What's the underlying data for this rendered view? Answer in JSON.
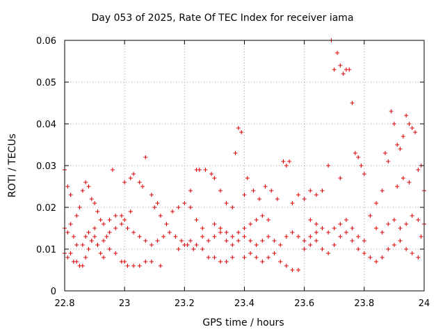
{
  "chart_data": {
    "type": "scatter",
    "title": "Day 053 of 2025, Rate Of TEC Index for receiver iama",
    "xlabel": "GPS time / hours",
    "ylabel": "ROTI / TECUs",
    "xlim": [
      22.8,
      24
    ],
    "ylim": [
      0,
      0.06
    ],
    "x_ticks": [
      "22.8",
      "23",
      "23.2",
      "23.4",
      "23.6",
      "23.8",
      "24"
    ],
    "y_ticks": [
      "0",
      "0.01",
      "0.02",
      "0.03",
      "0.04",
      "0.05",
      "0.06"
    ],
    "grid": true,
    "marker": "+",
    "color": "#e00000",
    "series": [
      {
        "points": [
          [
            22.8,
            0.029
          ],
          [
            22.81,
            0.025
          ],
          [
            22.82,
            0.023
          ],
          [
            22.8,
            0.015
          ],
          [
            22.81,
            0.014
          ],
          [
            22.82,
            0.016
          ],
          [
            22.83,
            0.013
          ],
          [
            22.84,
            0.018
          ],
          [
            22.85,
            0.02
          ],
          [
            22.86,
            0.024
          ],
          [
            22.87,
            0.026
          ],
          [
            22.88,
            0.025
          ],
          [
            22.89,
            0.022
          ],
          [
            22.9,
            0.021
          ],
          [
            22.91,
            0.019
          ],
          [
            22.92,
            0.017
          ],
          [
            22.8,
            0.009
          ],
          [
            22.81,
            0.008
          ],
          [
            22.82,
            0.009
          ],
          [
            22.83,
            0.007
          ],
          [
            22.84,
            0.007
          ],
          [
            22.85,
            0.006
          ],
          [
            22.86,
            0.006
          ],
          [
            22.87,
            0.008
          ],
          [
            22.88,
            0.01
          ],
          [
            22.89,
            0.012
          ],
          [
            22.9,
            0.013
          ],
          [
            22.91,
            0.011
          ],
          [
            22.92,
            0.009
          ],
          [
            22.93,
            0.008
          ],
          [
            22.84,
            0.011
          ],
          [
            22.86,
            0.011
          ],
          [
            22.88,
            0.014
          ],
          [
            22.9,
            0.015
          ],
          [
            22.93,
            0.016
          ],
          [
            22.95,
            0.017
          ],
          [
            22.97,
            0.018
          ],
          [
            22.99,
            0.018
          ],
          [
            23.0,
            0.017
          ],
          [
            23.02,
            0.019
          ],
          [
            22.96,
            0.029
          ],
          [
            23.0,
            0.026
          ],
          [
            23.02,
            0.027
          ],
          [
            23.03,
            0.028
          ],
          [
            23.05,
            0.026
          ],
          [
            23.06,
            0.025
          ],
          [
            23.07,
            0.032
          ],
          [
            23.09,
            0.023
          ],
          [
            23.1,
            0.02
          ],
          [
            23.11,
            0.021
          ],
          [
            22.95,
            0.01
          ],
          [
            22.97,
            0.009
          ],
          [
            22.99,
            0.007
          ],
          [
            23.0,
            0.007
          ],
          [
            23.01,
            0.006
          ],
          [
            23.03,
            0.006
          ],
          [
            23.05,
            0.006
          ],
          [
            23.07,
            0.007
          ],
          [
            23.09,
            0.007
          ],
          [
            23.12,
            0.006
          ],
          [
            23.12,
            0.018
          ],
          [
            23.14,
            0.016
          ],
          [
            23.16,
            0.019
          ],
          [
            23.18,
            0.02
          ],
          [
            23.2,
            0.021
          ],
          [
            23.22,
            0.02
          ],
          [
            23.24,
            0.017
          ],
          [
            23.26,
            0.015
          ],
          [
            23.22,
            0.024
          ],
          [
            23.24,
            0.029
          ],
          [
            23.25,
            0.029
          ],
          [
            23.27,
            0.029
          ],
          [
            23.29,
            0.028
          ],
          [
            23.3,
            0.027
          ],
          [
            23.32,
            0.024
          ],
          [
            23.34,
            0.021
          ],
          [
            23.36,
            0.02
          ],
          [
            23.37,
            0.033
          ],
          [
            23.38,
            0.039
          ],
          [
            23.39,
            0.038
          ],
          [
            23.18,
            0.01
          ],
          [
            23.2,
            0.011
          ],
          [
            23.22,
            0.012
          ],
          [
            23.24,
            0.011
          ],
          [
            23.26,
            0.01
          ],
          [
            23.28,
            0.008
          ],
          [
            23.3,
            0.008
          ],
          [
            23.32,
            0.007
          ],
          [
            23.34,
            0.007
          ],
          [
            23.36,
            0.008
          ],
          [
            23.3,
            0.016
          ],
          [
            23.32,
            0.015
          ],
          [
            23.34,
            0.014
          ],
          [
            23.36,
            0.013
          ],
          [
            23.38,
            0.014
          ],
          [
            23.4,
            0.015
          ],
          [
            23.42,
            0.016
          ],
          [
            23.44,
            0.017
          ],
          [
            23.46,
            0.018
          ],
          [
            23.48,
            0.017
          ],
          [
            23.4,
            0.023
          ],
          [
            23.41,
            0.027
          ],
          [
            23.43,
            0.024
          ],
          [
            23.45,
            0.022
          ],
          [
            23.47,
            0.025
          ],
          [
            23.49,
            0.024
          ],
          [
            23.51,
            0.022
          ],
          [
            23.53,
            0.031
          ],
          [
            23.54,
            0.03
          ],
          [
            23.55,
            0.031
          ],
          [
            23.4,
            0.008
          ],
          [
            23.42,
            0.009
          ],
          [
            23.44,
            0.008
          ],
          [
            23.46,
            0.007
          ],
          [
            23.48,
            0.008
          ],
          [
            23.5,
            0.009
          ],
          [
            23.52,
            0.007
          ],
          [
            23.54,
            0.006
          ],
          [
            23.56,
            0.005
          ],
          [
            23.58,
            0.005
          ],
          [
            23.56,
            0.021
          ],
          [
            23.58,
            0.023
          ],
          [
            23.6,
            0.022
          ],
          [
            23.62,
            0.024
          ],
          [
            23.64,
            0.023
          ],
          [
            23.66,
            0.024
          ],
          [
            23.68,
            0.03
          ],
          [
            23.69,
            0.06
          ],
          [
            23.7,
            0.053
          ],
          [
            23.71,
            0.057
          ],
          [
            23.72,
            0.054
          ],
          [
            23.73,
            0.052
          ],
          [
            23.74,
            0.053
          ],
          [
            23.75,
            0.053
          ],
          [
            23.76,
            0.045
          ],
          [
            23.77,
            0.033
          ],
          [
            23.78,
            0.032
          ],
          [
            23.79,
            0.03
          ],
          [
            23.8,
            0.028
          ],
          [
            23.72,
            0.027
          ],
          [
            23.6,
            0.01
          ],
          [
            23.62,
            0.011
          ],
          [
            23.64,
            0.012
          ],
          [
            23.66,
            0.01
          ],
          [
            23.68,
            0.009
          ],
          [
            23.7,
            0.011
          ],
          [
            23.72,
            0.013
          ],
          [
            23.74,
            0.014
          ],
          [
            23.76,
            0.012
          ],
          [
            23.78,
            0.01
          ],
          [
            23.8,
            0.009
          ],
          [
            23.82,
            0.008
          ],
          [
            23.84,
            0.007
          ],
          [
            23.86,
            0.008
          ],
          [
            23.88,
            0.01
          ],
          [
            23.9,
            0.011
          ],
          [
            23.92,
            0.012
          ],
          [
            23.94,
            0.01
          ],
          [
            23.96,
            0.009
          ],
          [
            23.98,
            0.008
          ],
          [
            23.82,
            0.018
          ],
          [
            23.84,
            0.021
          ],
          [
            23.86,
            0.024
          ],
          [
            23.87,
            0.033
          ],
          [
            23.88,
            0.031
          ],
          [
            23.89,
            0.043
          ],
          [
            23.9,
            0.04
          ],
          [
            23.91,
            0.035
          ],
          [
            23.92,
            0.034
          ],
          [
            23.93,
            0.037
          ],
          [
            23.94,
            0.042
          ],
          [
            23.95,
            0.04
          ],
          [
            23.96,
            0.039
          ],
          [
            23.97,
            0.038
          ],
          [
            23.98,
            0.029
          ],
          [
            23.99,
            0.03
          ],
          [
            24.0,
            0.024
          ],
          [
            23.95,
            0.026
          ],
          [
            23.93,
            0.027
          ],
          [
            23.91,
            0.025
          ],
          [
            23.84,
            0.015
          ],
          [
            23.86,
            0.014
          ],
          [
            23.88,
            0.016
          ],
          [
            23.9,
            0.017
          ],
          [
            23.92,
            0.015
          ],
          [
            23.94,
            0.016
          ],
          [
            23.96,
            0.018
          ],
          [
            23.98,
            0.017
          ],
          [
            24.0,
            0.016
          ],
          [
            23.99,
            0.013
          ],
          [
            23.62,
            0.017
          ],
          [
            23.64,
            0.016
          ],
          [
            23.66,
            0.015
          ],
          [
            23.68,
            0.014
          ],
          [
            23.7,
            0.015
          ],
          [
            23.72,
            0.016
          ],
          [
            23.74,
            0.017
          ],
          [
            23.76,
            0.015
          ],
          [
            23.78,
            0.013
          ],
          [
            23.8,
            0.012
          ],
          [
            23.05,
            0.013
          ],
          [
            23.07,
            0.012
          ],
          [
            23.09,
            0.011
          ],
          [
            23.11,
            0.012
          ],
          [
            23.13,
            0.013
          ],
          [
            23.15,
            0.014
          ],
          [
            23.17,
            0.013
          ],
          [
            23.19,
            0.012
          ],
          [
            23.21,
            0.011
          ],
          [
            23.23,
            0.01
          ],
          [
            22.95,
            0.014
          ],
          [
            22.97,
            0.015
          ],
          [
            22.99,
            0.016
          ],
          [
            23.01,
            0.015
          ],
          [
            23.03,
            0.014
          ],
          [
            22.87,
            0.013
          ],
          [
            22.89,
            0.012
          ],
          [
            22.91,
            0.011
          ],
          [
            22.93,
            0.012
          ],
          [
            22.94,
            0.013
          ],
          [
            23.26,
            0.013
          ],
          [
            23.28,
            0.012
          ],
          [
            23.3,
            0.013
          ],
          [
            23.32,
            0.014
          ],
          [
            23.34,
            0.012
          ],
          [
            23.36,
            0.011
          ],
          [
            23.38,
            0.012
          ],
          [
            23.4,
            0.013
          ],
          [
            23.42,
            0.012
          ],
          [
            23.44,
            0.011
          ],
          [
            23.46,
            0.012
          ],
          [
            23.48,
            0.013
          ],
          [
            23.5,
            0.012
          ],
          [
            23.52,
            0.011
          ],
          [
            23.54,
            0.013
          ],
          [
            23.56,
            0.014
          ],
          [
            23.58,
            0.013
          ],
          [
            23.6,
            0.012
          ],
          [
            23.62,
            0.013
          ],
          [
            23.64,
            0.014
          ]
        ]
      }
    ]
  }
}
